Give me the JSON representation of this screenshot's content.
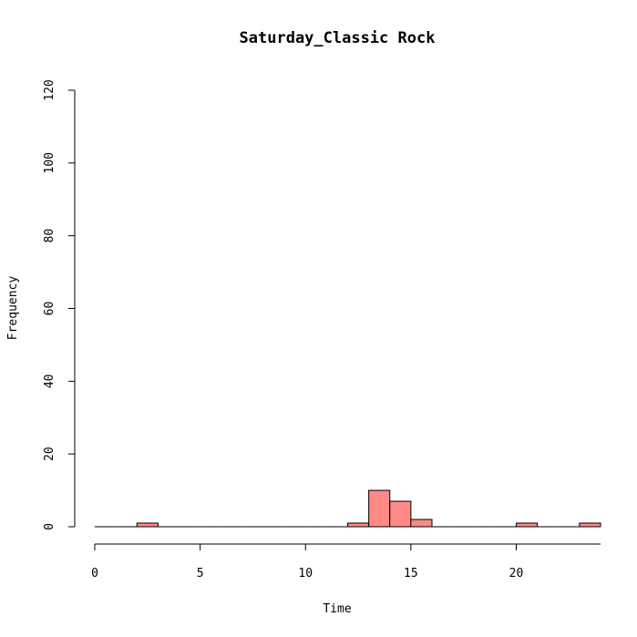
{
  "chart_data": {
    "type": "bar",
    "title": "Saturday_Classic Rock",
    "xlabel": "Time",
    "ylabel": "Frequency",
    "bar_color": "#ff8a85",
    "bin_width": 1,
    "xlim": [
      0,
      24
    ],
    "ylim": [
      0,
      120
    ],
    "x_ticks": [
      0,
      5,
      10,
      15,
      20
    ],
    "y_ticks": [
      0,
      20,
      40,
      60,
      80,
      100,
      120
    ],
    "bins": [
      {
        "start": 0,
        "end": 1,
        "count": 0
      },
      {
        "start": 1,
        "end": 2,
        "count": 0
      },
      {
        "start": 2,
        "end": 3,
        "count": 1
      },
      {
        "start": 3,
        "end": 4,
        "count": 0
      },
      {
        "start": 4,
        "end": 5,
        "count": 0
      },
      {
        "start": 5,
        "end": 6,
        "count": 0
      },
      {
        "start": 6,
        "end": 7,
        "count": 0
      },
      {
        "start": 7,
        "end": 8,
        "count": 0
      },
      {
        "start": 8,
        "end": 9,
        "count": 0
      },
      {
        "start": 9,
        "end": 10,
        "count": 0
      },
      {
        "start": 10,
        "end": 11,
        "count": 0
      },
      {
        "start": 11,
        "end": 12,
        "count": 0
      },
      {
        "start": 12,
        "end": 13,
        "count": 1
      },
      {
        "start": 13,
        "end": 14,
        "count": 10
      },
      {
        "start": 14,
        "end": 15,
        "count": 7
      },
      {
        "start": 15,
        "end": 16,
        "count": 2
      },
      {
        "start": 16,
        "end": 17,
        "count": 0
      },
      {
        "start": 17,
        "end": 18,
        "count": 0
      },
      {
        "start": 18,
        "end": 19,
        "count": 0
      },
      {
        "start": 19,
        "end": 20,
        "count": 0
      },
      {
        "start": 20,
        "end": 21,
        "count": 1
      },
      {
        "start": 21,
        "end": 22,
        "count": 0
      },
      {
        "start": 22,
        "end": 23,
        "count": 0
      },
      {
        "start": 23,
        "end": 24,
        "count": 1
      }
    ]
  }
}
